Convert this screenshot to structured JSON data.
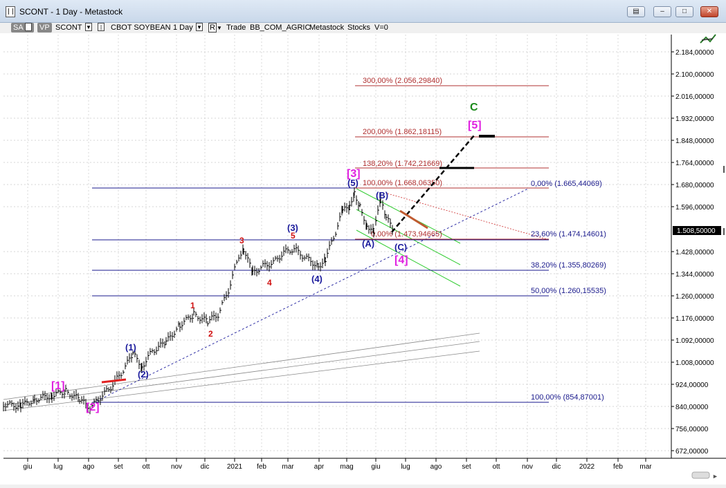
{
  "window": {
    "title": "SCONT - 1 Day - Metastock",
    "buttons": [
      "restore",
      "minimize",
      "maximize",
      "close"
    ]
  },
  "toolbar": {
    "sa_label": "SA",
    "vp_label": "VP",
    "symbol": "SCONT",
    "instrument": "CBOT SOYBEAN",
    "period": "1 Day",
    "mode_label": "R",
    "trade_label": "Trade",
    "group": "BB_COM_AGRIC",
    "source": "Metastock",
    "type": "Stocks",
    "volume": "V=0"
  },
  "price_axis": {
    "ticks": [
      "2.184,00000",
      "2.100,00000",
      "2.016,00000",
      "1.932,00000",
      "1.848,00000",
      "1.764,00000",
      "1.680,00000",
      "1.596,00000",
      "1.428,00000",
      "1.344,00000",
      "1.260,00000",
      "1.176,00000",
      "1.092,00000",
      "1.008,00000",
      "924,00000",
      "840,00000",
      "756,00000",
      "672,00000"
    ],
    "last_price": "1.508,50000"
  },
  "time_axis": {
    "months": [
      "giu",
      "lug",
      "ago",
      "set",
      "ott",
      "nov",
      "dic",
      "2021",
      "feb",
      "mar",
      "apr",
      "mag",
      "giu",
      "lug",
      "ago",
      "set",
      "ott",
      "nov",
      "dic",
      "2022",
      "feb",
      "mar"
    ]
  },
  "fib_levels": {
    "retracement": [
      "0,00% (1.665,44069)",
      "23,60% (1.474,14601)",
      "38,20% (1.355,80269)",
      "50,00% (1.260,15535)",
      "100,00% (854,87001)"
    ],
    "extension": [
      "300,00% (2.056,29840)",
      "200,00% (1.862,18115)",
      "138,20% (1.742,21669)",
      "100,00% (1.668,06350)",
      "0,00% (1.473,94665)"
    ]
  },
  "wave_labels": {
    "magenta": [
      "[1]",
      "[2]",
      "[3]",
      "[4]",
      "[5]"
    ],
    "green": [
      "C"
    ],
    "blue": [
      "(1)",
      "(2)",
      "(3)",
      "(4)",
      "(5)",
      "(A)",
      "(B)",
      "(C)"
    ],
    "red": [
      "1",
      "2",
      "3",
      "4",
      "5"
    ]
  },
  "colors": {
    "fib_retracement": "#1a1a8c",
    "fib_extension": "#b03030",
    "magenta_wave": "#e020e0",
    "blue_wave": "#1a1a9c",
    "red_wave": "#d01010",
    "green_wave": "#1a8a1a",
    "channel": "#22bb22",
    "price_tag_bg": "#000000"
  }
}
